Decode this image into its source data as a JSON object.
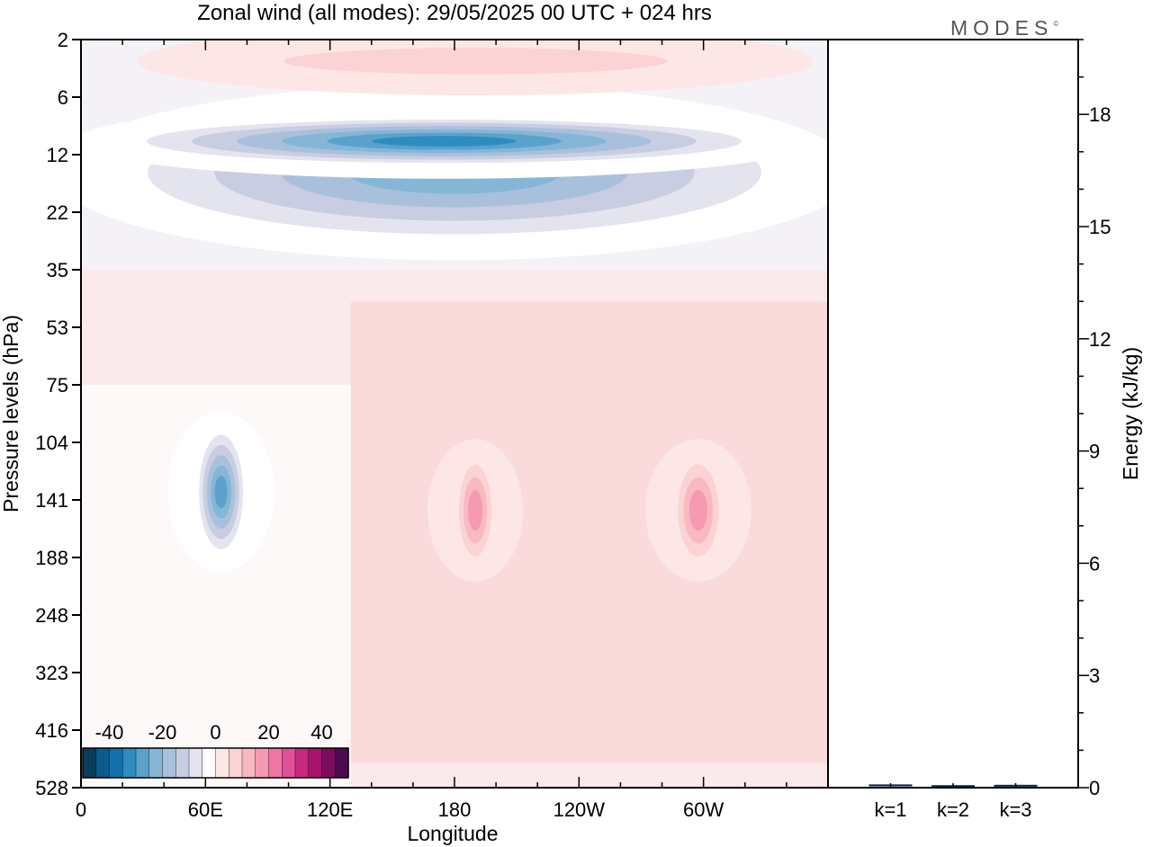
{
  "figure": {
    "title": "Zonal wind (all modes):  29/05/2025  00 UTC  + 024 hrs",
    "brand": "MODES",
    "brand_mark": "©"
  },
  "chart_data": [
    {
      "type": "heatmap",
      "title": "Zonal wind (all modes):  29/05/2025  00 UTC  + 024 hrs",
      "xlabel": "Longitude",
      "ylabel": "Pressure levels (hPa)",
      "x_ticks": [
        "0",
        "60E",
        "120E",
        "180",
        "120W",
        "60W"
      ],
      "x_tick_degrees": [
        0,
        60,
        120,
        180,
        240,
        300
      ],
      "xlim": [
        0,
        360
      ],
      "y_ticks": [
        2,
        6,
        12,
        22,
        35,
        53,
        75,
        104,
        141,
        188,
        248,
        323,
        416,
        528
      ],
      "y_tick_labels": [
        "2",
        "6",
        "12",
        "22",
        "35",
        "53",
        "75",
        "104",
        "141",
        "188",
        "248",
        "323",
        "416",
        "528"
      ],
      "ylim": [
        2,
        528
      ],
      "y_scale": "model levels",
      "colorbar": {
        "ticks": [
          -40,
          -20,
          0,
          20,
          40
        ],
        "range": [
          -50,
          50
        ],
        "step": 5,
        "placement": "bottom-left",
        "colors": [
          "#0a3d5c",
          "#0b5a8a",
          "#1370ad",
          "#2f8cc1",
          "#5aa2cc",
          "#85b6d6",
          "#a9c0dc",
          "#c8cde2",
          "#e4e4ef",
          "#ffffff",
          "#fde7e6",
          "#fbd3d4",
          "#f8b9c1",
          "#f59ab1",
          "#ef76a4",
          "#e04f97",
          "#c8297f",
          "#a7136c",
          "#7b0d5f",
          "#4d0a4f"
        ]
      },
      "features": [
        {
          "name": "easterly band",
          "lon": [
            0,
            360
          ],
          "p": [
            6,
            30
          ],
          "value": -25
        },
        {
          "name": "easterly core",
          "lon": [
            10,
            340
          ],
          "p": [
            8,
            14
          ],
          "value": -35
        },
        {
          "name": "upper westerlies",
          "lon": [
            40,
            340
          ],
          "p": [
            2,
            5
          ],
          "value": 12
        },
        {
          "name": "easterly maximum",
          "lon": [
            55,
            80
          ],
          "p": [
            95,
            190
          ],
          "value": -30
        },
        {
          "name": "westerly maximum",
          "lon": [
            180,
            200
          ],
          "p": [
            110,
            200
          ],
          "value": 22
        },
        {
          "name": "westerly maximum",
          "lon": [
            285,
            310
          ],
          "p": [
            110,
            200
          ],
          "value": 22
        }
      ]
    },
    {
      "type": "bar",
      "categories": [
        "k=1",
        "k=2",
        "k=3"
      ],
      "values": [
        0.05,
        0.03,
        0.04
      ],
      "ylabel": "Energy (kJ/kg)",
      "y_ticks": [
        0,
        3,
        6,
        9,
        12,
        15,
        18
      ],
      "ylim": [
        0,
        20
      ]
    }
  ]
}
